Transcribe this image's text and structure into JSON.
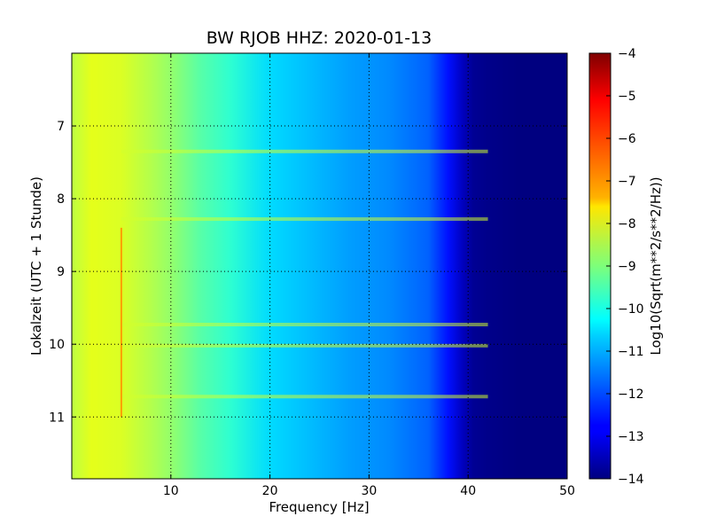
{
  "chart_data": {
    "type": "heatmap",
    "title": "BW RJOB HHZ: 2020-01-13",
    "xlabel": "Frequency [Hz]",
    "ylabel": "Lokalzeit (UTC + 1 Stunde)",
    "xlim": [
      0,
      50
    ],
    "ylim": [
      11.85,
      6.0
    ],
    "y_inverted": true,
    "grid": true,
    "x_ticks": [
      10,
      20,
      30,
      40,
      50
    ],
    "x_tick_labels": [
      "10",
      "20",
      "30",
      "40",
      "50"
    ],
    "y_ticks": [
      7,
      8,
      9,
      10,
      11
    ],
    "y_tick_labels": [
      "7",
      "8",
      "9",
      "10",
      "11"
    ],
    "colormap": "jet",
    "colorbar": {
      "label": "Log10(Sqrt(m**2/s**2/Hz))",
      "range": [
        -14,
        -4
      ],
      "ticks": [
        -4,
        -5,
        -6,
        -7,
        -8,
        -9,
        -10,
        -11,
        -12,
        -13,
        -14
      ],
      "tick_labels": [
        "−4",
        "−5",
        "−6",
        "−7",
        "−8",
        "−9",
        "−10",
        "−11",
        "−12",
        "−13",
        "−14"
      ]
    },
    "spectral_profile": {
      "frequency_hz": [
        0,
        2,
        5,
        8,
        10,
        13,
        16,
        20,
        24,
        28,
        32,
        36,
        38,
        39.5,
        40.5,
        42,
        45,
        50
      ],
      "log_amplitude": [
        -8.4,
        -8.0,
        -8.1,
        -8.5,
        -8.8,
        -9.4,
        -9.8,
        -10.6,
        -10.9,
        -11.2,
        -11.4,
        -11.8,
        -12.6,
        -13.4,
        -13.8,
        -13.9,
        -14.0,
        -14.0
      ]
    },
    "broadband_events_hour": [
      7.35,
      8.28,
      9.73,
      10.02,
      10.72
    ],
    "narrowband_line_hz": 5
  }
}
